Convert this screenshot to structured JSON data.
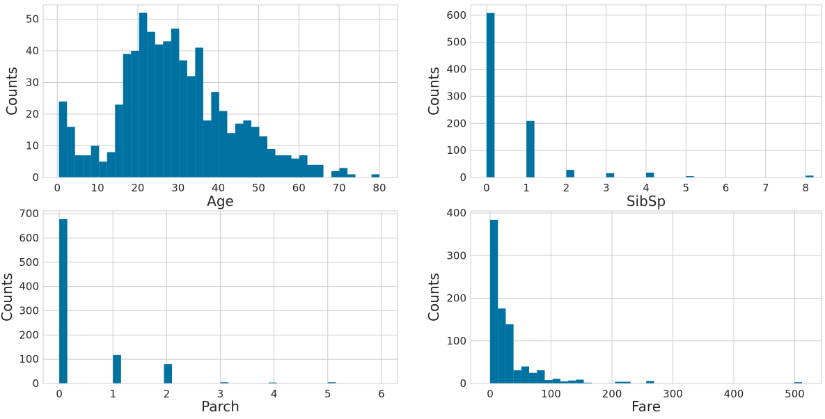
{
  "chart_data": [
    {
      "type": "bar",
      "xlabel": "Age",
      "ylabel": "Counts",
      "bin_width": 2,
      "bin_starts": [
        0.42,
        2.41,
        4.4,
        6.39,
        8.38,
        10.37,
        12.36,
        14.35,
        16.34,
        18.33,
        20.32,
        22.31,
        24.3,
        26.29,
        28.28,
        30.27,
        32.26,
        34.25,
        36.24,
        38.23,
        40.22,
        42.21,
        44.2,
        46.19,
        48.18,
        50.17,
        52.16,
        54.15,
        56.14,
        58.13,
        60.12,
        62.11,
        64.1,
        66.09,
        68.08,
        70.07,
        72.06,
        74.05,
        76.04,
        78.03
      ],
      "values": [
        24,
        16,
        7,
        7,
        10,
        5,
        8,
        23,
        39,
        40,
        52,
        46,
        42,
        43,
        47,
        37,
        32,
        41,
        18,
        27,
        21,
        14,
        17,
        18,
        16,
        13,
        9,
        7,
        7,
        6,
        7,
        4,
        4,
        0,
        2,
        3,
        1,
        0,
        0,
        1
      ],
      "xlim": [
        -3.5,
        84.5
      ],
      "ylim": [
        0,
        54.5
      ],
      "xticks": [
        0,
        10,
        20,
        30,
        40,
        50,
        60,
        70,
        80
      ],
      "yticks": [
        0,
        10,
        20,
        30,
        40,
        50
      ]
    },
    {
      "type": "bar",
      "xlabel": "SibSp",
      "ylabel": "Counts",
      "bin_width": 0.2,
      "bin_starts": [
        0,
        1,
        2,
        3,
        4,
        5,
        8
      ],
      "values": [
        608,
        209,
        28,
        16,
        18,
        5,
        7
      ],
      "xlim": [
        -0.4,
        8.4
      ],
      "ylim": [
        0,
        638
      ],
      "xticks": [
        0,
        1,
        2,
        3,
        4,
        5,
        6,
        7,
        8
      ],
      "yticks": [
        0,
        100,
        200,
        300,
        400,
        500,
        600
      ]
    },
    {
      "type": "bar",
      "xlabel": "Parch",
      "ylabel": "Counts",
      "bin_width": 0.15,
      "bin_starts": [
        0,
        1,
        1.95,
        3,
        3.9,
        5,
        5.85
      ],
      "values": [
        678,
        118,
        80,
        5,
        4,
        5,
        1
      ],
      "xlim": [
        -0.3,
        6.3
      ],
      "ylim": [
        0,
        712
      ],
      "xticks": [
        0,
        1,
        2,
        3,
        4,
        5,
        6
      ],
      "yticks": [
        0,
        100,
        200,
        300,
        400,
        500,
        600,
        700
      ]
    },
    {
      "type": "bar",
      "xlabel": "Fare",
      "ylabel": "Counts",
      "bin_width": 12.81,
      "bin_starts": [
        0,
        12.81,
        25.62,
        38.43,
        51.24,
        64.05,
        76.86,
        89.67,
        102.48,
        115.29,
        128.1,
        140.91,
        153.72,
        166.53,
        179.34,
        192.15,
        204.96,
        217.77,
        230.58,
        243.39,
        256.2,
        499.2
      ],
      "values": [
        384,
        176,
        139,
        31,
        40,
        25,
        31,
        8,
        11,
        5,
        7,
        9,
        2,
        0,
        0,
        0,
        4,
        4,
        0,
        1,
        6,
        3
      ],
      "xlim": [
        -32,
        544
      ],
      "ylim": [
        0,
        405
      ],
      "xticks": [
        0,
        100,
        200,
        300,
        400,
        500
      ],
      "yticks": [
        0,
        100,
        200,
        300,
        400
      ]
    }
  ],
  "style": {
    "bar_color": "#0072a2",
    "grid_color": "#cccccc",
    "grid": true
  }
}
